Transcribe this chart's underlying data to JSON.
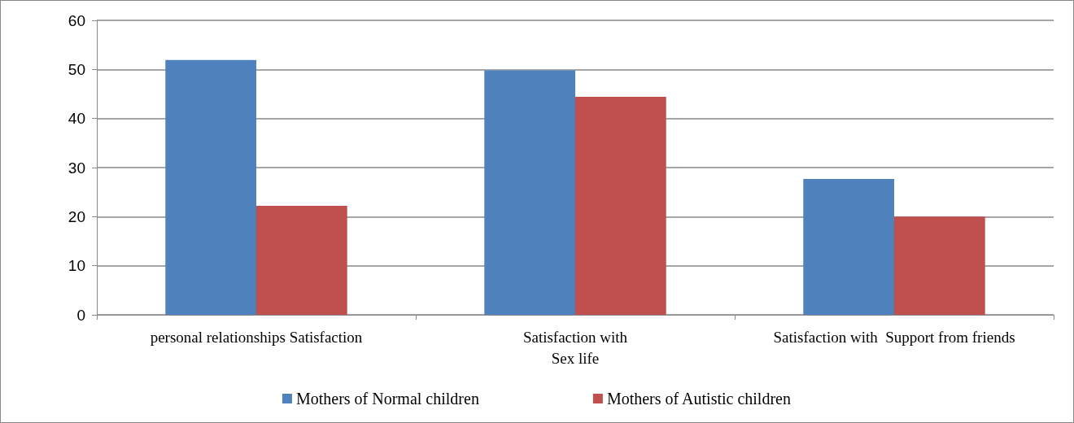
{
  "chart_data": {
    "type": "bar",
    "categories": [
      "personal relationships Satisfaction",
      "Satisfaction with\nSex life",
      "Satisfaction with  Support from friends"
    ],
    "series": [
      {
        "name": "Mothers of Normal children",
        "color": "#4f81bd",
        "values": [
          51.9,
          49.8,
          27.7
        ]
      },
      {
        "name": "Mothers of Autistic children",
        "color": "#c0504d",
        "values": [
          22.2,
          44.4,
          20
        ]
      }
    ],
    "ylim": [
      0,
      60
    ],
    "yticks": [
      0,
      10,
      20,
      30,
      40,
      50,
      60
    ],
    "grid": "y",
    "legend": "bottom"
  }
}
